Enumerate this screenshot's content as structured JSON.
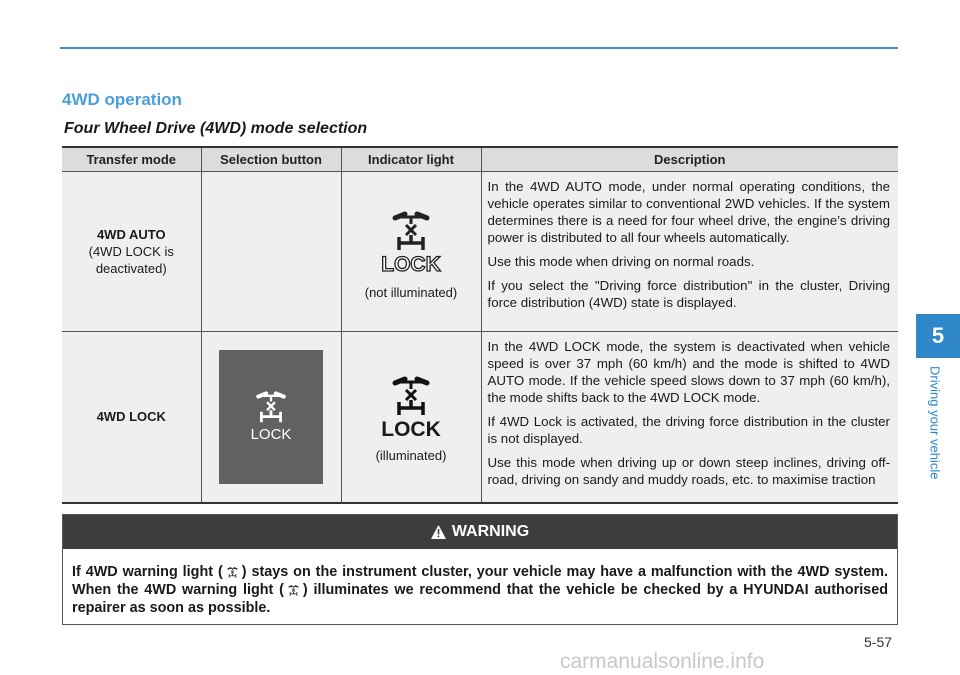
{
  "section_title": "4WD operation",
  "subtitle": "Four Wheel Drive (4WD) mode selection",
  "table": {
    "headers": [
      "Transfer mode",
      "Selection button",
      "Indicator light",
      "Description"
    ],
    "rows": [
      {
        "mode": "4WD AUTO",
        "mode_note": "(4WD LOCK is deactivated)",
        "indicator_label": "LOCK",
        "indicator_state": "(not illuminated)",
        "description": [
          "In the 4WD AUTO mode, under normal operating conditions, the vehicle operates similar to conventional 2WD vehicles. If the system determines there is a need for four wheel drive, the engine’s driving power is distributed to all four wheels automat­ically.",
          "Use this mode when driving on normal roads.",
          "If you select the \"Driving force distribution\" in the cluster, Driving force distribution (4WD) state is displayed."
        ]
      },
      {
        "mode": "4WD LOCK",
        "button_label": "LOCK",
        "indicator_label": "LOCK",
        "indicator_state": "(illuminated)",
        "description": [
          "In the 4WD LOCK mode, the system is deactivated when vehi­cle speed is over 37 mph (60 km/h) and the mode is shifted to 4WD AUTO mode. If the vehicle speed slows down to 37 mph (60 km/h), the mode shifts back to the 4WD LOCK mode.",
          "If 4WD Lock is activated, the driving force distribution in the cluster is not displayed.",
          "Use this mode when driving up or down steep inclines, driving off-road, driving on sandy and muddy roads, etc. to maximise traction"
        ]
      }
    ]
  },
  "warning": {
    "title": "WARNING",
    "text_1": "If 4WD warning light (",
    "text_2": ") stays on the instrument cluster, your vehicle may have a malfunction with the 4WD system. When the 4WD warning light (",
    "text_3": ") illuminates we recommend that the vehicle be checked by a HYUNDAI authorised repairer as soon as possible."
  },
  "side_tab": {
    "chapter": "5",
    "label": "Driving your vehicle"
  },
  "page_number": "5-57",
  "watermark": "carmanualsonline.info",
  "colors": {
    "accent": "#2f86c8",
    "title": "#4a9fd8",
    "warning_header": "#3d3d3d"
  }
}
